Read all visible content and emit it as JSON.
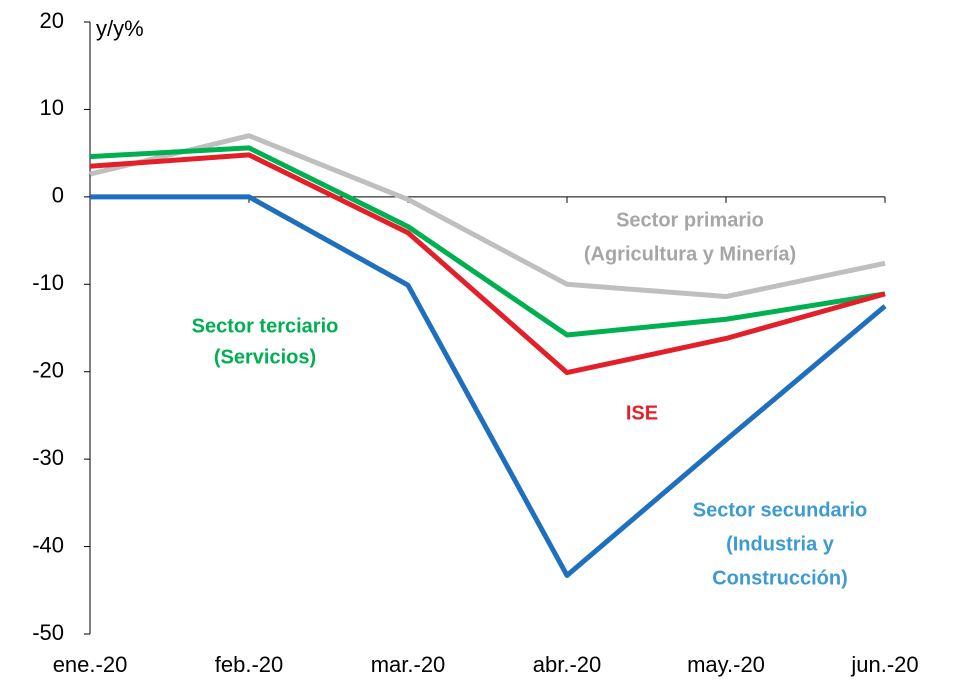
{
  "chart_data": {
    "type": "line",
    "y_axis_label": "y/y%",
    "categories": [
      "ene.-20",
      "feb.-20",
      "mar.-20",
      "abr.-20",
      "may.-20",
      "jun.-20"
    ],
    "series": [
      {
        "color": "#bfbfbf",
        "values": [
          2.6,
          7.0,
          -0.3,
          -10.0,
          -11.4,
          -7.6
        ]
      },
      {
        "color": "#00b050",
        "values": [
          4.6,
          5.6,
          -3.4,
          -15.8,
          -14.0,
          -11.1
        ]
      },
      {
        "color": "#e3202a",
        "values": [
          3.5,
          4.8,
          -4.1,
          -20.1,
          -16.2,
          -11.1
        ]
      },
      {
        "color": "#1f6fbf",
        "values": [
          0,
          0,
          -10.1,
          -43.3,
          -27.8,
          -12.5
        ]
      }
    ],
    "annotations": [
      {
        "lines": [
          "Sector primario",
          "(Agricultura y Minería)"
        ],
        "color": "#a6a6a6"
      },
      {
        "lines": [
          "Sector terciario",
          "(Servicios)"
        ],
        "color": "#00b050"
      },
      {
        "lines": [
          "ISE"
        ],
        "color": "#e3202a"
      },
      {
        "lines": [
          "Sector secundario",
          "(Industria y",
          "Construcción)"
        ],
        "color": "#3d9bd1"
      }
    ],
    "ylim": [
      -50,
      20
    ],
    "yticks": [
      -50,
      -40,
      -30,
      -20,
      -10,
      0,
      10,
      20
    ]
  }
}
